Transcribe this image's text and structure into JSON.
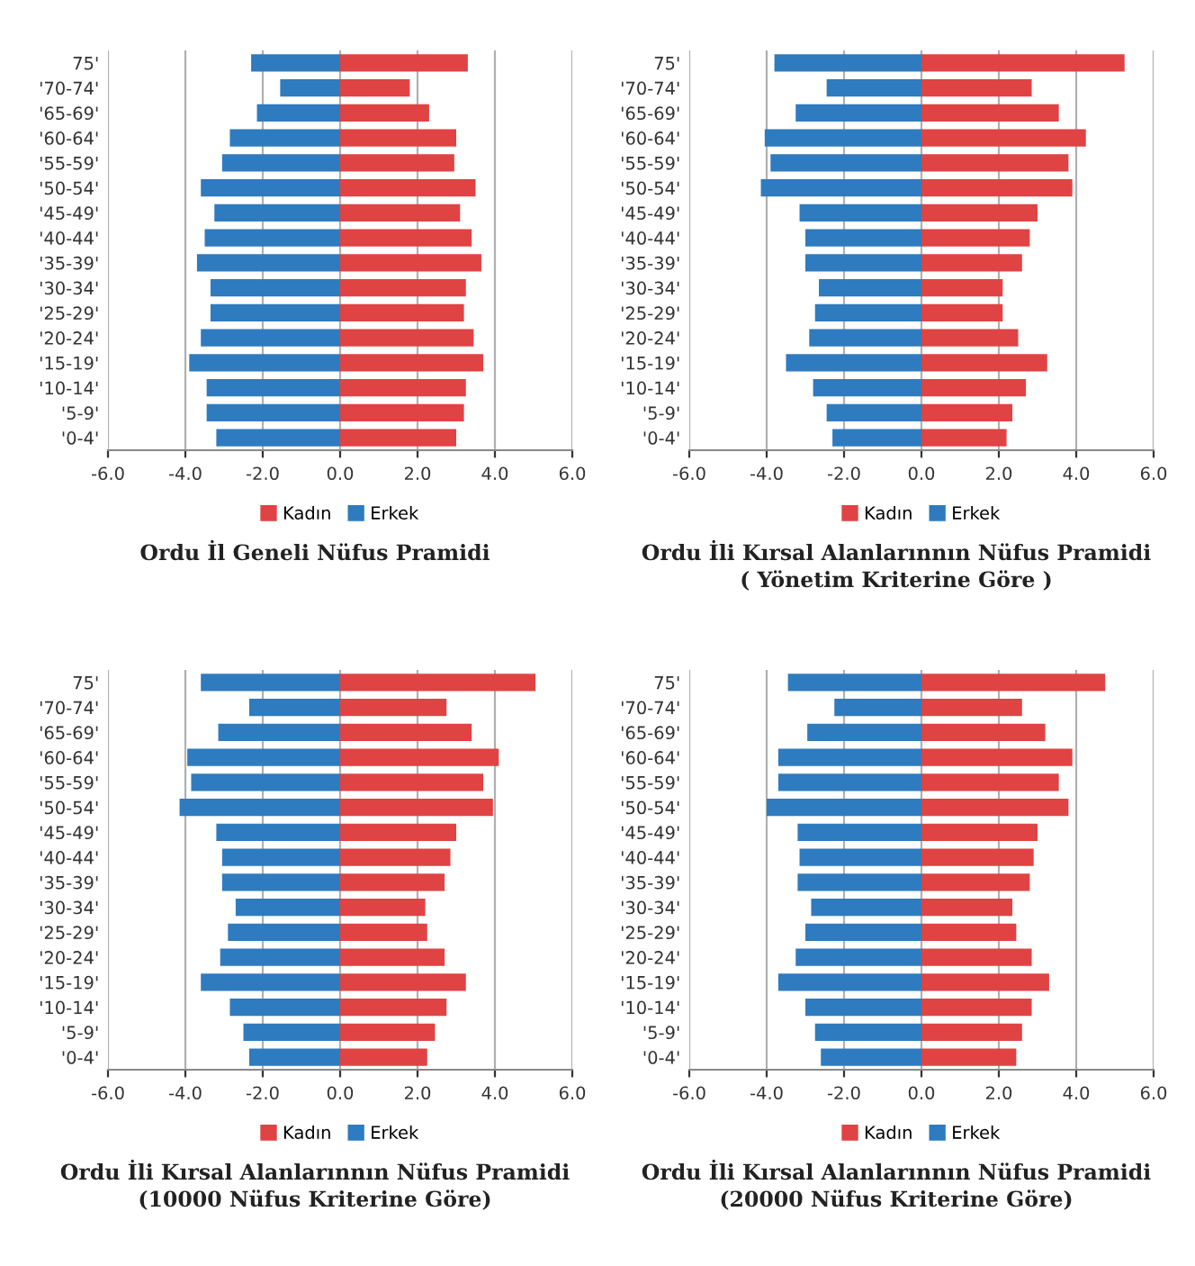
{
  "chart_data": [
    {
      "type": "bar",
      "orientation": "horizontal",
      "stacked": true,
      "title": "Ordu İl Geneli Nüfus Pramidi",
      "categories": [
        "75'",
        "'70-74'",
        "'65-69'",
        "'60-64'",
        "'55-59'",
        "'50-54'",
        "'45-49'",
        "'40-44'",
        "'35-39'",
        "'30-34'",
        "'25-29'",
        "'20-24'",
        "'15-19'",
        "'10-14'",
        "'5-9'",
        "'0-4'"
      ],
      "series": [
        {
          "name": "Kadın",
          "color": "#e04343",
          "values": [
            3.3,
            1.8,
            2.3,
            3.0,
            2.95,
            3.5,
            3.1,
            3.4,
            3.65,
            3.25,
            3.2,
            3.45,
            3.7,
            3.25,
            3.2,
            3.0
          ]
        },
        {
          "name": "Erkek",
          "color": "#2f7bbf",
          "values": [
            -2.3,
            -1.55,
            -2.15,
            -2.85,
            -3.05,
            -3.6,
            -3.25,
            -3.5,
            -3.7,
            -3.35,
            -3.35,
            -3.6,
            -3.9,
            -3.45,
            -3.45,
            -3.2
          ]
        }
      ],
      "xlim": [
        -6,
        6
      ],
      "xticks": [
        {
          "value": -6,
          "label": "-6.0"
        },
        {
          "value": -4,
          "label": "-4.0"
        },
        {
          "value": -2,
          "label": "-2.0"
        },
        {
          "value": 0,
          "label": "0.0"
        },
        {
          "value": 2,
          "label": "2.0"
        },
        {
          "value": 4,
          "label": "4.0"
        },
        {
          "value": 6,
          "label": "6.0"
        }
      ],
      "grid": "x",
      "legend": "bottom"
    },
    {
      "type": "bar",
      "orientation": "horizontal",
      "stacked": true,
      "title": "Ordu İli Kırsal Alanlarınnın Nüfus Pramidi\n( Yönetim Kriterine Göre )",
      "categories": [
        "75'",
        "'70-74'",
        "'65-69'",
        "'60-64'",
        "'55-59'",
        "'50-54'",
        "'45-49'",
        "'40-44'",
        "'35-39'",
        "'30-34'",
        "'25-29'",
        "'20-24'",
        "'15-19'",
        "'10-14'",
        "'5-9'",
        "'0-4'"
      ],
      "series": [
        {
          "name": "Kadın",
          "color": "#e04343",
          "values": [
            5.25,
            2.85,
            3.55,
            4.25,
            3.8,
            3.9,
            3.0,
            2.8,
            2.6,
            2.1,
            2.1,
            2.5,
            3.25,
            2.7,
            2.35,
            2.2
          ]
        },
        {
          "name": "Erkek",
          "color": "#2f7bbf",
          "values": [
            -3.8,
            -2.45,
            -3.25,
            -4.05,
            -3.9,
            -4.15,
            -3.15,
            -3.0,
            -3.0,
            -2.65,
            -2.75,
            -2.9,
            -3.5,
            -2.8,
            -2.45,
            -2.3
          ]
        }
      ],
      "xlim": [
        -6,
        6
      ],
      "xticks": [
        {
          "value": -6,
          "label": "-6.0"
        },
        {
          "value": -4,
          "label": "-4.0"
        },
        {
          "value": -2,
          "label": "-2.0"
        },
        {
          "value": 0,
          "label": "0.0"
        },
        {
          "value": 2,
          "label": "2.0"
        },
        {
          "value": 4,
          "label": "4.0"
        },
        {
          "value": 6,
          "label": "6.0"
        }
      ],
      "grid": "x",
      "legend": "bottom"
    },
    {
      "type": "bar",
      "orientation": "horizontal",
      "stacked": true,
      "title": "Ordu İli Kırsal Alanlarınnın Nüfus Pramidi\n(10000 Nüfus Kriterine Göre)",
      "categories": [
        "75'",
        "'70-74'",
        "'65-69'",
        "'60-64'",
        "'55-59'",
        "'50-54'",
        "'45-49'",
        "'40-44'",
        "'35-39'",
        "'30-34'",
        "'25-29'",
        "'20-24'",
        "'15-19'",
        "'10-14'",
        "'5-9'",
        "'0-4'"
      ],
      "series": [
        {
          "name": "Kadın",
          "color": "#e04343",
          "values": [
            5.05,
            2.75,
            3.4,
            4.1,
            3.7,
            3.95,
            3.0,
            2.85,
            2.7,
            2.2,
            2.25,
            2.7,
            3.25,
            2.75,
            2.45,
            2.25
          ]
        },
        {
          "name": "Erkek",
          "color": "#2f7bbf",
          "values": [
            -3.6,
            -2.35,
            -3.15,
            -3.95,
            -3.85,
            -4.15,
            -3.2,
            -3.05,
            -3.05,
            -2.7,
            -2.9,
            -3.1,
            -3.6,
            -2.85,
            -2.5,
            -2.35
          ]
        }
      ],
      "xlim": [
        -6,
        6
      ],
      "xticks": [
        {
          "value": -6,
          "label": "-6.0"
        },
        {
          "value": -4,
          "label": "-4.0"
        },
        {
          "value": -2,
          "label": "-2.0"
        },
        {
          "value": 0,
          "label": "0.0"
        },
        {
          "value": 2,
          "label": "2.0"
        },
        {
          "value": 4,
          "label": "4.0"
        },
        {
          "value": 6,
          "label": "6.0"
        }
      ],
      "grid": "x",
      "legend": "bottom"
    },
    {
      "type": "bar",
      "orientation": "horizontal",
      "stacked": true,
      "title": "Ordu İli Kırsal Alanlarınnın Nüfus Pramidi\n(20000 Nüfus Kriterine Göre)",
      "categories": [
        "75'",
        "'70-74'",
        "'65-69'",
        "'60-64'",
        "'55-59'",
        "'50-54'",
        "'45-49'",
        "'40-44'",
        "'35-39'",
        "'30-34'",
        "'25-29'",
        "'20-24'",
        "'15-19'",
        "'10-14'",
        "'5-9'",
        "'0-4'"
      ],
      "series": [
        {
          "name": "Kadın",
          "color": "#e04343",
          "values": [
            4.75,
            2.6,
            3.2,
            3.9,
            3.55,
            3.8,
            3.0,
            2.9,
            2.8,
            2.35,
            2.45,
            2.85,
            3.3,
            2.85,
            2.6,
            2.45
          ]
        },
        {
          "name": "Erkek",
          "color": "#2f7bbf",
          "values": [
            -3.45,
            -2.25,
            -2.95,
            -3.7,
            -3.7,
            -4.0,
            -3.2,
            -3.15,
            -3.2,
            -2.85,
            -3.0,
            -3.25,
            -3.7,
            -3.0,
            -2.75,
            -2.6
          ]
        }
      ],
      "xlim": [
        -6,
        6
      ],
      "xticks": [
        {
          "value": -6,
          "label": "-6.0"
        },
        {
          "value": -4,
          "label": "-4.0"
        },
        {
          "value": -2,
          "label": "-2.0"
        },
        {
          "value": 0,
          "label": "0.0"
        },
        {
          "value": 2,
          "label": "2.0"
        },
        {
          "value": 4,
          "label": "4.0"
        },
        {
          "value": 6,
          "label": "6.0"
        }
      ],
      "grid": "x",
      "legend": "bottom"
    }
  ]
}
